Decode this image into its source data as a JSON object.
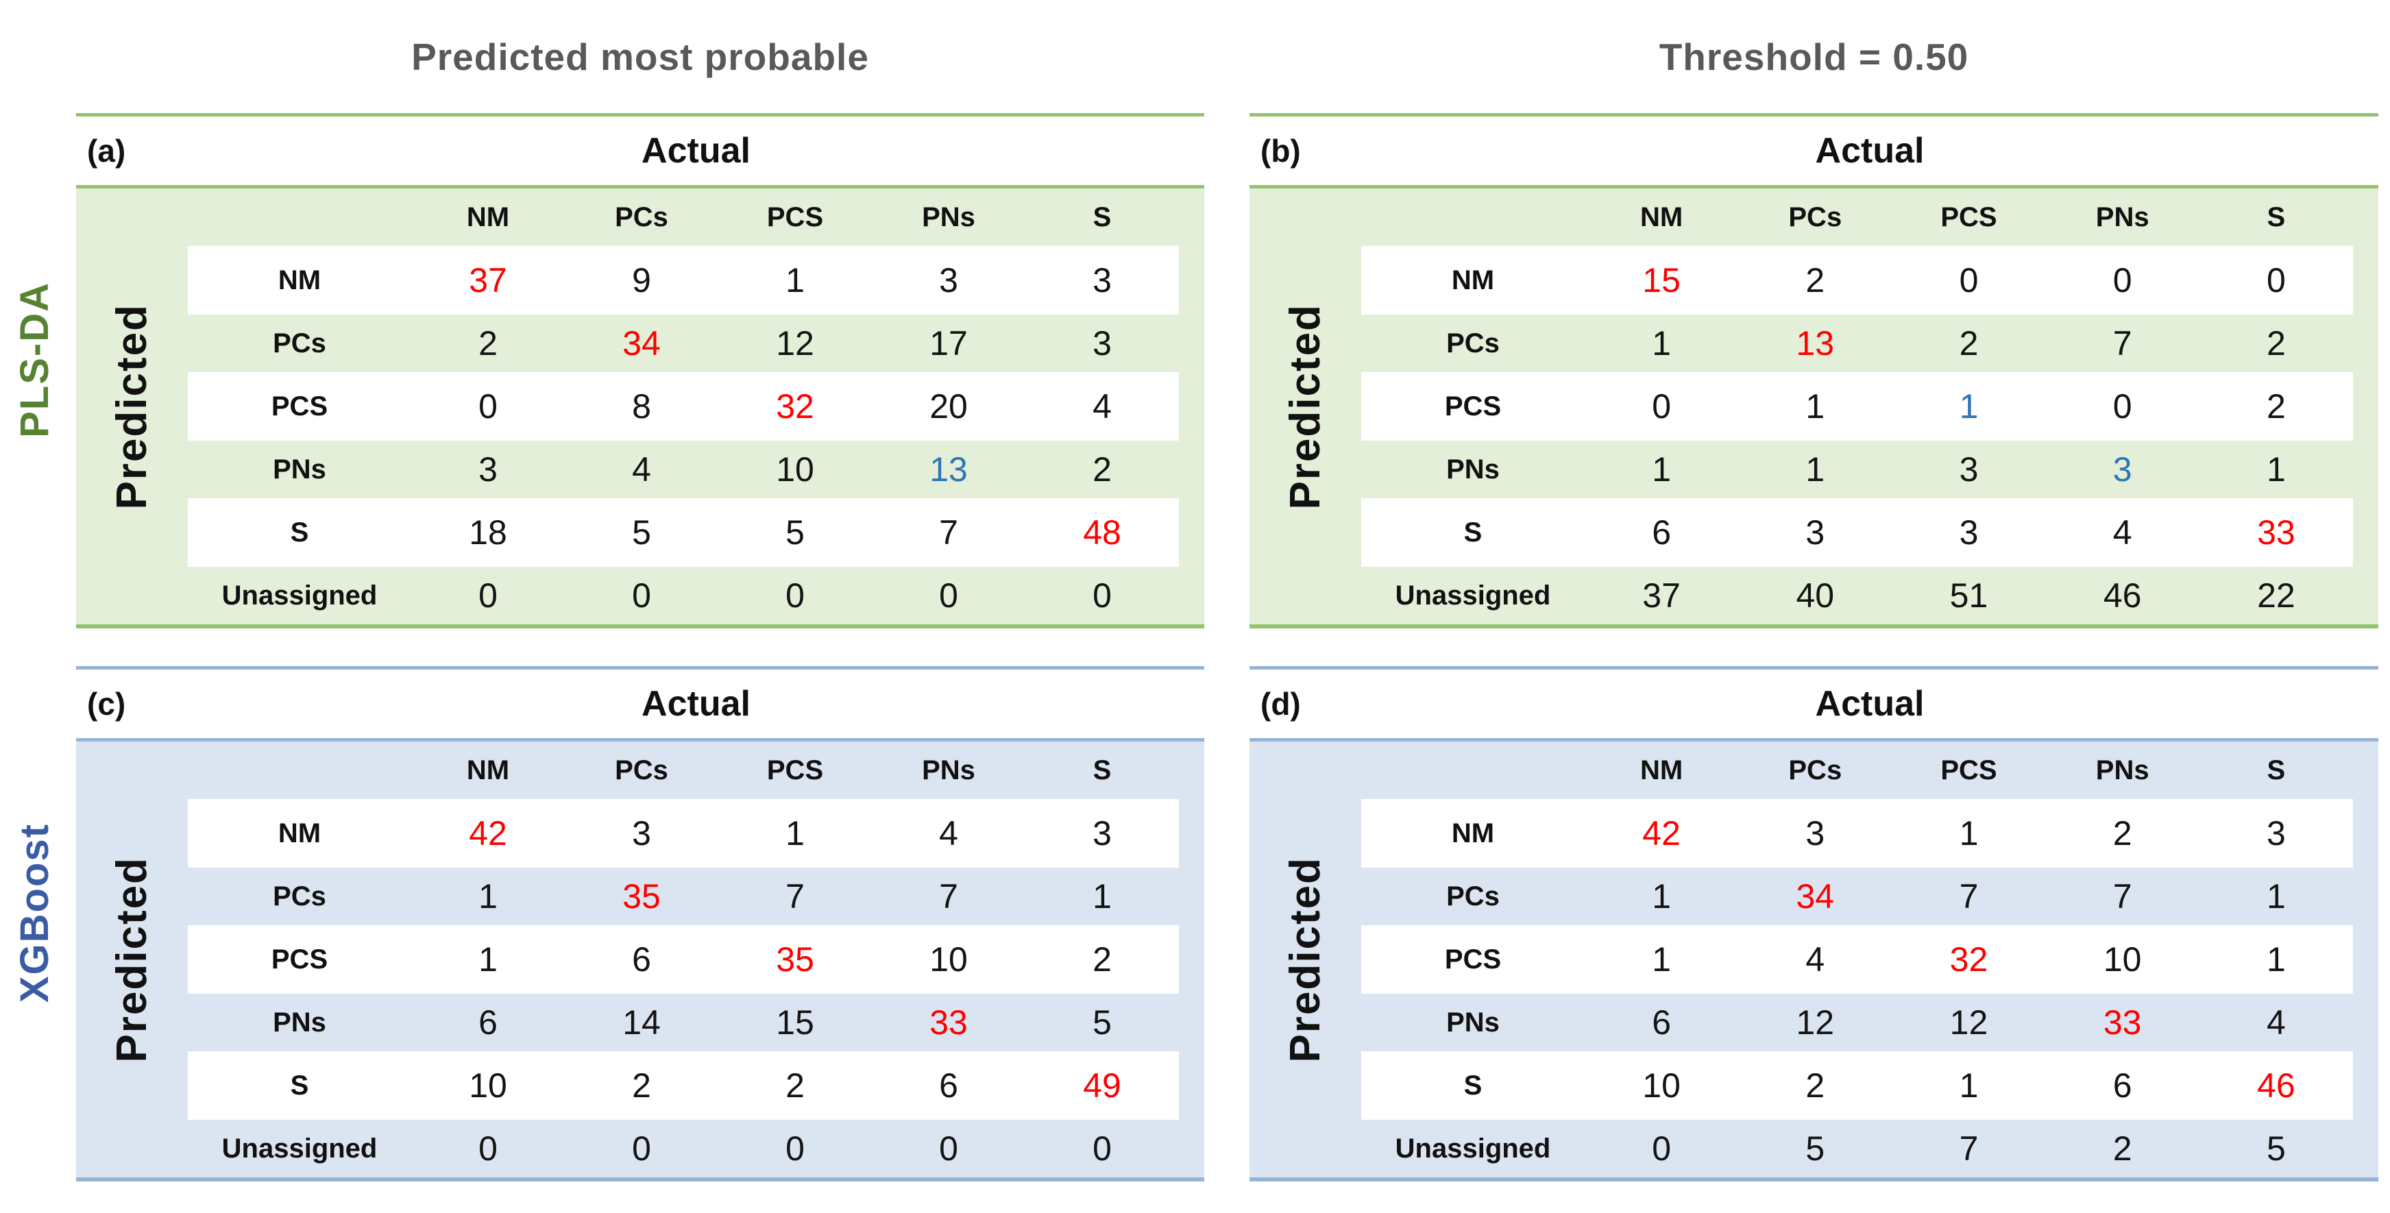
{
  "figure": {
    "column_titles": [
      "Predicted most probable",
      "Threshold = 0.50"
    ],
    "models": [
      {
        "name": "PLS-DA"
      },
      {
        "name": "XGBoost"
      }
    ],
    "axis": {
      "actual": "Actual",
      "predicted": "Predicted"
    },
    "classes": [
      "NM",
      "PCs",
      "PCS",
      "PNs",
      "S"
    ],
    "row_labels": [
      "NM",
      "PCs",
      "PCS",
      "PNs",
      "S",
      "Unassigned"
    ]
  },
  "colors": {
    "green_band": "#e4efd9",
    "green_line": "#93c46d",
    "blue_band": "#dbe5f1",
    "blue_line": "#95b3d7",
    "plsda_green": "#568232",
    "xgb_blue": "#3a5ba5",
    "diag_red": "#fe0000",
    "diag_blue": "#2e75b6",
    "title_gray": "#595959"
  },
  "tables": [
    {
      "panel": "(a)",
      "model": "PLS-DA",
      "condition": "Predicted most probable",
      "theme": "green",
      "rows": [
        [
          37,
          9,
          1,
          3,
          3
        ],
        [
          2,
          34,
          12,
          17,
          3
        ],
        [
          0,
          8,
          32,
          20,
          4
        ],
        [
          3,
          4,
          10,
          13,
          2
        ],
        [
          18,
          5,
          5,
          7,
          48
        ],
        [
          0,
          0,
          0,
          0,
          0
        ]
      ],
      "diag": [
        "red",
        "red",
        "red",
        "blue",
        "red"
      ]
    },
    {
      "panel": "(b)",
      "model": "PLS-DA",
      "condition": "Threshold = 0.50",
      "theme": "green",
      "rows": [
        [
          15,
          2,
          0,
          0,
          0
        ],
        [
          1,
          13,
          2,
          7,
          2
        ],
        [
          0,
          1,
          1,
          0,
          2
        ],
        [
          1,
          1,
          3,
          3,
          1
        ],
        [
          6,
          3,
          3,
          4,
          33
        ],
        [
          37,
          40,
          51,
          46,
          22
        ]
      ],
      "diag": [
        "red",
        "red",
        "blue",
        "blue",
        "red"
      ]
    },
    {
      "panel": "(c)",
      "model": "XGBoost",
      "condition": "Predicted most probable",
      "theme": "blue",
      "rows": [
        [
          42,
          3,
          1,
          4,
          3
        ],
        [
          1,
          35,
          7,
          7,
          1
        ],
        [
          1,
          6,
          35,
          10,
          2
        ],
        [
          6,
          14,
          15,
          33,
          5
        ],
        [
          10,
          2,
          2,
          6,
          49
        ],
        [
          0,
          0,
          0,
          0,
          0
        ]
      ],
      "diag": [
        "red",
        "red",
        "red",
        "red",
        "red"
      ]
    },
    {
      "panel": "(d)",
      "model": "XGBoost",
      "condition": "Threshold = 0.50",
      "theme": "blue",
      "rows": [
        [
          42,
          3,
          1,
          2,
          3
        ],
        [
          1,
          34,
          7,
          7,
          1
        ],
        [
          1,
          4,
          32,
          10,
          1
        ],
        [
          6,
          12,
          12,
          33,
          4
        ],
        [
          10,
          2,
          1,
          6,
          46
        ],
        [
          0,
          5,
          7,
          2,
          5
        ]
      ],
      "diag": [
        "red",
        "red",
        "red",
        "red",
        "red"
      ]
    }
  ]
}
